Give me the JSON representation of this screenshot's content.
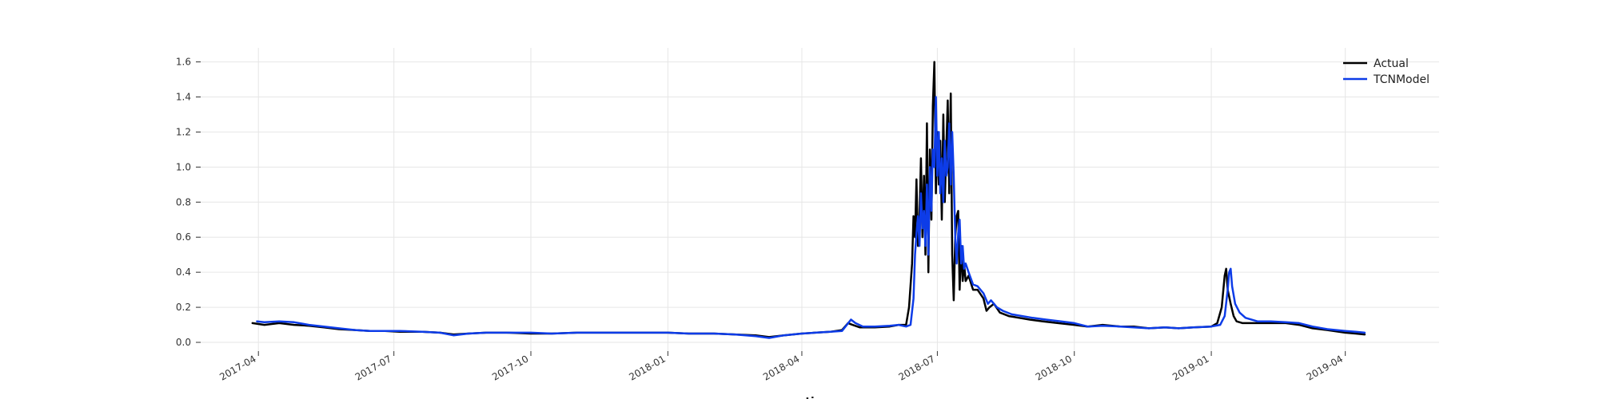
{
  "chart_data": {
    "type": "line",
    "xlabel": "time",
    "ylabel": "",
    "ylim": [
      -0.05,
      1.68
    ],
    "xlim": [
      "2017-02-18",
      "2019-06-03"
    ],
    "y_ticks": [
      0.0,
      0.2,
      0.4,
      0.6,
      0.8,
      1.0,
      1.2,
      1.4,
      1.6
    ],
    "y_tick_labels": [
      "0.0",
      "0.2",
      "0.4",
      "0.6",
      "0.8",
      "1.0",
      "1.2",
      "1.4",
      "1.6"
    ],
    "x_ticks": [
      "2017-04-01",
      "2017-07-01",
      "2017-10-01",
      "2018-01-01",
      "2018-04-01",
      "2018-07-01",
      "2018-10-01",
      "2019-01-01",
      "2019-04-01"
    ],
    "x_tick_labels": [
      "2017-04",
      "2017-07",
      "2017-10",
      "2018-01",
      "2018-04",
      "2018-07",
      "2018-10",
      "2019-01",
      "2019-04"
    ],
    "grid": true,
    "legend_position": "top-right",
    "series": [
      {
        "name": "Actual",
        "color": "#000000",
        "points": [
          [
            "2017-03-28",
            0.11
          ],
          [
            "2017-04-05",
            0.1
          ],
          [
            "2017-04-15",
            0.11
          ],
          [
            "2017-04-25",
            0.1
          ],
          [
            "2017-05-05",
            0.095
          ],
          [
            "2017-05-15",
            0.085
          ],
          [
            "2017-05-25",
            0.075
          ],
          [
            "2017-06-05",
            0.07
          ],
          [
            "2017-06-15",
            0.065
          ],
          [
            "2017-06-25",
            0.065
          ],
          [
            "2017-07-05",
            0.06
          ],
          [
            "2017-07-20",
            0.06
          ],
          [
            "2017-08-01",
            0.055
          ],
          [
            "2017-08-10",
            0.045
          ],
          [
            "2017-08-20",
            0.05
          ],
          [
            "2017-09-01",
            0.055
          ],
          [
            "2017-09-15",
            0.055
          ],
          [
            "2017-10-01",
            0.05
          ],
          [
            "2017-10-15",
            0.05
          ],
          [
            "2017-11-01",
            0.055
          ],
          [
            "2017-11-15",
            0.055
          ],
          [
            "2017-12-01",
            0.055
          ],
          [
            "2017-12-15",
            0.055
          ],
          [
            "2018-01-01",
            0.055
          ],
          [
            "2018-01-15",
            0.05
          ],
          [
            "2018-02-01",
            0.05
          ],
          [
            "2018-02-15",
            0.045
          ],
          [
            "2018-03-01",
            0.04
          ],
          [
            "2018-03-10",
            0.03
          ],
          [
            "2018-03-20",
            0.04
          ],
          [
            "2018-04-01",
            0.05
          ],
          [
            "2018-04-10",
            0.055
          ],
          [
            "2018-04-20",
            0.06
          ],
          [
            "2018-04-28",
            0.07
          ],
          [
            "2018-05-02",
            0.11
          ],
          [
            "2018-05-05",
            0.1
          ],
          [
            "2018-05-10",
            0.085
          ],
          [
            "2018-05-20",
            0.085
          ],
          [
            "2018-05-30",
            0.09
          ],
          [
            "2018-06-05",
            0.1
          ],
          [
            "2018-06-10",
            0.1
          ],
          [
            "2018-06-12",
            0.2
          ],
          [
            "2018-06-14",
            0.45
          ],
          [
            "2018-06-15",
            0.72
          ],
          [
            "2018-06-16",
            0.6
          ],
          [
            "2018-06-17",
            0.93
          ],
          [
            "2018-06-18",
            0.55
          ],
          [
            "2018-06-19",
            0.72
          ],
          [
            "2018-06-20",
            1.05
          ],
          [
            "2018-06-21",
            0.6
          ],
          [
            "2018-06-22",
            0.95
          ],
          [
            "2018-06-23",
            0.5
          ],
          [
            "2018-06-24",
            1.25
          ],
          [
            "2018-06-25",
            0.4
          ],
          [
            "2018-06-26",
            1.1
          ],
          [
            "2018-06-27",
            0.7
          ],
          [
            "2018-06-28",
            1.35
          ],
          [
            "2018-06-29",
            1.6
          ],
          [
            "2018-06-30",
            0.85
          ],
          [
            "2018-07-01",
            1.2
          ],
          [
            "2018-07-02",
            0.9
          ],
          [
            "2018-07-03",
            1.15
          ],
          [
            "2018-07-04",
            0.7
          ],
          [
            "2018-07-05",
            1.3
          ],
          [
            "2018-07-06",
            0.8
          ],
          [
            "2018-07-07",
            1.1
          ],
          [
            "2018-07-08",
            1.38
          ],
          [
            "2018-07-09",
            0.85
          ],
          [
            "2018-07-10",
            1.42
          ],
          [
            "2018-07-11",
            0.5
          ],
          [
            "2018-07-12",
            0.24
          ],
          [
            "2018-07-13",
            0.6
          ],
          [
            "2018-07-14",
            0.72
          ],
          [
            "2018-07-15",
            0.75
          ],
          [
            "2018-07-16",
            0.3
          ],
          [
            "2018-07-17",
            0.55
          ],
          [
            "2018-07-18",
            0.35
          ],
          [
            "2018-07-19",
            0.45
          ],
          [
            "2018-07-20",
            0.35
          ],
          [
            "2018-07-22",
            0.38
          ],
          [
            "2018-07-25",
            0.3
          ],
          [
            "2018-07-28",
            0.3
          ],
          [
            "2018-08-01",
            0.25
          ],
          [
            "2018-08-03",
            0.18
          ],
          [
            "2018-08-05",
            0.2
          ],
          [
            "2018-08-08",
            0.22
          ],
          [
            "2018-08-12",
            0.17
          ],
          [
            "2018-08-18",
            0.15
          ],
          [
            "2018-08-25",
            0.14
          ],
          [
            "2018-09-01",
            0.13
          ],
          [
            "2018-09-10",
            0.12
          ],
          [
            "2018-09-20",
            0.11
          ],
          [
            "2018-10-01",
            0.1
          ],
          [
            "2018-10-10",
            0.09
          ],
          [
            "2018-10-20",
            0.1
          ],
          [
            "2018-11-01",
            0.09
          ],
          [
            "2018-11-10",
            0.09
          ],
          [
            "2018-11-20",
            0.08
          ],
          [
            "2018-12-01",
            0.085
          ],
          [
            "2018-12-10",
            0.08
          ],
          [
            "2018-12-20",
            0.085
          ],
          [
            "2019-01-01",
            0.09
          ],
          [
            "2019-01-05",
            0.11
          ],
          [
            "2019-01-08",
            0.2
          ],
          [
            "2019-01-10",
            0.38
          ],
          [
            "2019-01-11",
            0.42
          ],
          [
            "2019-01-12",
            0.3
          ],
          [
            "2019-01-14",
            0.22
          ],
          [
            "2019-01-16",
            0.15
          ],
          [
            "2019-01-18",
            0.12
          ],
          [
            "2019-01-22",
            0.11
          ],
          [
            "2019-02-01",
            0.11
          ],
          [
            "2019-02-10",
            0.11
          ],
          [
            "2019-02-20",
            0.11
          ],
          [
            "2019-03-01",
            0.1
          ],
          [
            "2019-03-10",
            0.08
          ],
          [
            "2019-03-20",
            0.07
          ],
          [
            "2019-04-01",
            0.055
          ],
          [
            "2019-04-08",
            0.05
          ],
          [
            "2019-04-14",
            0.045
          ]
        ]
      },
      {
        "name": "TCNModel",
        "color": "#0d3ce8",
        "points": [
          [
            "2017-03-31",
            0.12
          ],
          [
            "2017-04-05",
            0.115
          ],
          [
            "2017-04-15",
            0.12
          ],
          [
            "2017-04-25",
            0.115
          ],
          [
            "2017-05-05",
            0.1
          ],
          [
            "2017-05-15",
            0.09
          ],
          [
            "2017-05-25",
            0.08
          ],
          [
            "2017-06-05",
            0.07
          ],
          [
            "2017-06-15",
            0.065
          ],
          [
            "2017-06-25",
            0.065
          ],
          [
            "2017-07-05",
            0.065
          ],
          [
            "2017-07-20",
            0.06
          ],
          [
            "2017-08-01",
            0.055
          ],
          [
            "2017-08-10",
            0.04
          ],
          [
            "2017-08-20",
            0.05
          ],
          [
            "2017-09-01",
            0.055
          ],
          [
            "2017-09-15",
            0.055
          ],
          [
            "2017-10-01",
            0.055
          ],
          [
            "2017-10-15",
            0.05
          ],
          [
            "2017-11-01",
            0.055
          ],
          [
            "2017-11-15",
            0.055
          ],
          [
            "2017-12-01",
            0.055
          ],
          [
            "2017-12-15",
            0.055
          ],
          [
            "2018-01-01",
            0.055
          ],
          [
            "2018-01-15",
            0.05
          ],
          [
            "2018-02-01",
            0.05
          ],
          [
            "2018-02-15",
            0.045
          ],
          [
            "2018-03-01",
            0.035
          ],
          [
            "2018-03-10",
            0.025
          ],
          [
            "2018-03-20",
            0.04
          ],
          [
            "2018-04-01",
            0.05
          ],
          [
            "2018-04-10",
            0.055
          ],
          [
            "2018-04-20",
            0.06
          ],
          [
            "2018-04-28",
            0.065
          ],
          [
            "2018-05-04",
            0.13
          ],
          [
            "2018-05-07",
            0.11
          ],
          [
            "2018-05-12",
            0.09
          ],
          [
            "2018-05-20",
            0.09
          ],
          [
            "2018-05-30",
            0.095
          ],
          [
            "2018-06-05",
            0.1
          ],
          [
            "2018-06-10",
            0.09
          ],
          [
            "2018-06-13",
            0.1
          ],
          [
            "2018-06-15",
            0.25
          ],
          [
            "2018-06-16",
            0.5
          ],
          [
            "2018-06-17",
            0.62
          ],
          [
            "2018-06-18",
            0.72
          ],
          [
            "2018-06-19",
            0.55
          ],
          [
            "2018-06-20",
            0.85
          ],
          [
            "2018-06-21",
            0.65
          ],
          [
            "2018-06-22",
            0.75
          ],
          [
            "2018-06-23",
            0.55
          ],
          [
            "2018-06-24",
            0.9
          ],
          [
            "2018-06-25",
            0.5
          ],
          [
            "2018-06-26",
            1.0
          ],
          [
            "2018-06-27",
            0.75
          ],
          [
            "2018-06-28",
            1.1
          ],
          [
            "2018-06-29",
            1.0
          ],
          [
            "2018-06-30",
            1.4
          ],
          [
            "2018-07-01",
            0.95
          ],
          [
            "2018-07-02",
            1.2
          ],
          [
            "2018-07-03",
            0.85
          ],
          [
            "2018-07-04",
            1.05
          ],
          [
            "2018-07-05",
            0.8
          ],
          [
            "2018-07-06",
            1.15
          ],
          [
            "2018-07-07",
            0.95
          ],
          [
            "2018-07-08",
            1.0
          ],
          [
            "2018-07-09",
            1.25
          ],
          [
            "2018-07-10",
            0.9
          ],
          [
            "2018-07-11",
            1.2
          ],
          [
            "2018-07-12",
            0.95
          ],
          [
            "2018-07-13",
            0.6
          ],
          [
            "2018-07-14",
            0.45
          ],
          [
            "2018-07-15",
            0.62
          ],
          [
            "2018-07-16",
            0.7
          ],
          [
            "2018-07-17",
            0.45
          ],
          [
            "2018-07-18",
            0.55
          ],
          [
            "2018-07-19",
            0.42
          ],
          [
            "2018-07-20",
            0.45
          ],
          [
            "2018-07-22",
            0.4
          ],
          [
            "2018-07-25",
            0.33
          ],
          [
            "2018-07-28",
            0.32
          ],
          [
            "2018-08-01",
            0.28
          ],
          [
            "2018-08-04",
            0.22
          ],
          [
            "2018-08-06",
            0.24
          ],
          [
            "2018-08-10",
            0.2
          ],
          [
            "2018-08-14",
            0.18
          ],
          [
            "2018-08-20",
            0.16
          ],
          [
            "2018-08-27",
            0.15
          ],
          [
            "2018-09-03",
            0.14
          ],
          [
            "2018-09-12",
            0.13
          ],
          [
            "2018-09-22",
            0.12
          ],
          [
            "2018-10-01",
            0.11
          ],
          [
            "2018-10-10",
            0.09
          ],
          [
            "2018-10-20",
            0.095
          ],
          [
            "2018-11-01",
            0.09
          ],
          [
            "2018-11-10",
            0.085
          ],
          [
            "2018-11-20",
            0.08
          ],
          [
            "2018-12-01",
            0.085
          ],
          [
            "2018-12-10",
            0.08
          ],
          [
            "2018-12-20",
            0.085
          ],
          [
            "2019-01-01",
            0.09
          ],
          [
            "2019-01-07",
            0.1
          ],
          [
            "2019-01-10",
            0.15
          ],
          [
            "2019-01-12",
            0.3
          ],
          [
            "2019-01-13",
            0.4
          ],
          [
            "2019-01-14",
            0.42
          ],
          [
            "2019-01-15",
            0.32
          ],
          [
            "2019-01-17",
            0.22
          ],
          [
            "2019-01-20",
            0.17
          ],
          [
            "2019-01-24",
            0.14
          ],
          [
            "2019-02-01",
            0.12
          ],
          [
            "2019-02-10",
            0.12
          ],
          [
            "2019-02-20",
            0.115
          ],
          [
            "2019-03-01",
            0.11
          ],
          [
            "2019-03-10",
            0.09
          ],
          [
            "2019-03-20",
            0.075
          ],
          [
            "2019-04-01",
            0.065
          ],
          [
            "2019-04-08",
            0.06
          ],
          [
            "2019-04-14",
            0.055
          ]
        ]
      }
    ]
  }
}
